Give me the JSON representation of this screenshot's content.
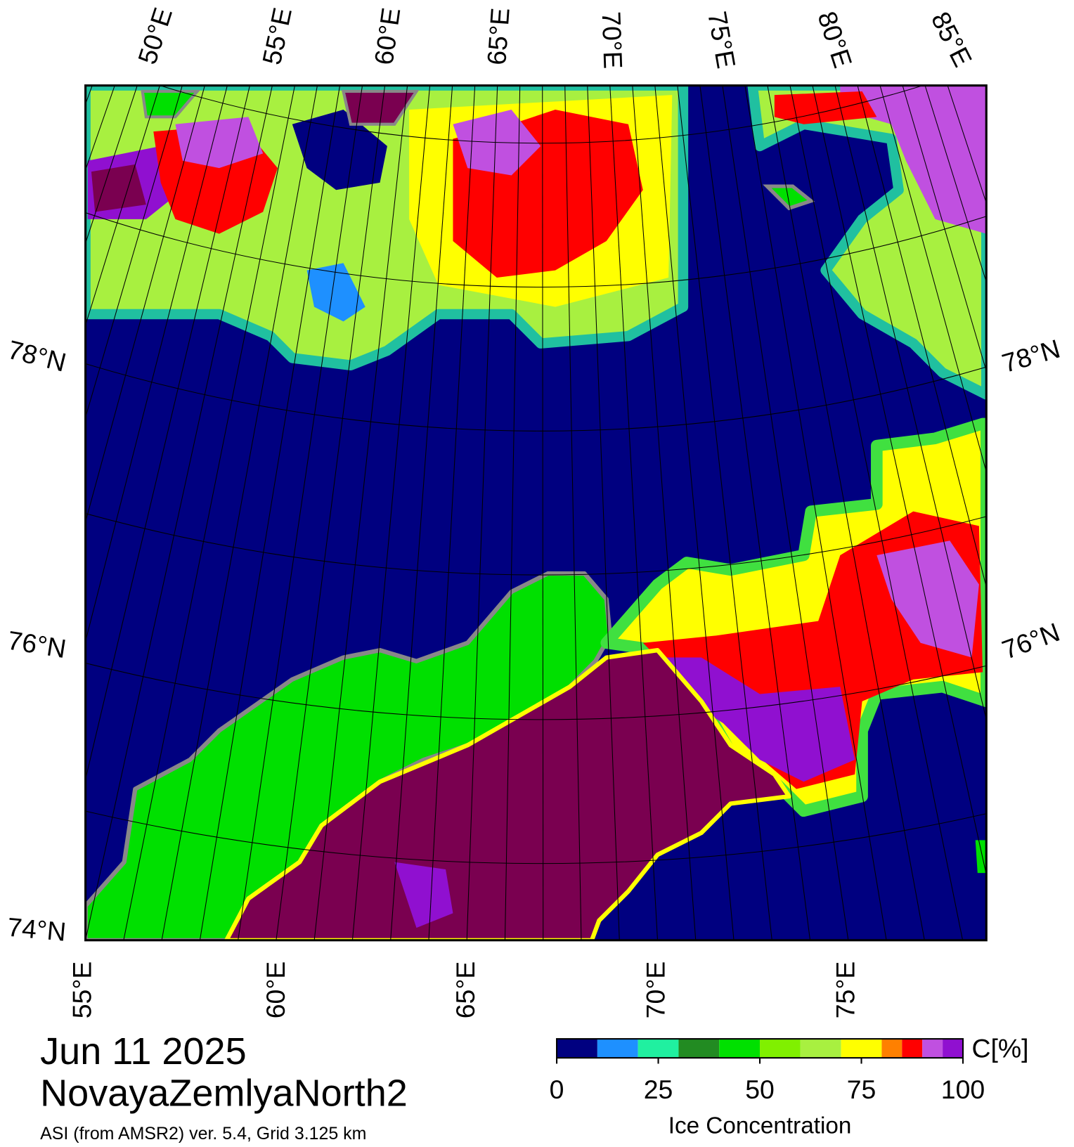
{
  "map": {
    "top_lon_labels": [
      "50°E",
      "55°E",
      "60°E",
      "65°E",
      "70°E",
      "75°E",
      "80°E",
      "85°E"
    ],
    "bottom_lon_labels": [
      "55°E",
      "60°E",
      "65°E",
      "70°E",
      "75°E"
    ],
    "left_lat_labels": [
      "78°N",
      "76°N",
      "74°N"
    ],
    "right_lat_labels": [
      "78°N",
      "76°N"
    ]
  },
  "date": "Jun 11 2025",
  "region": "NovayaZemlyaNorth2",
  "subtitle": "ASI (from AMSR2) ver. 5.4,  Grid 3.125 km",
  "colorbar": {
    "bounds": [
      0,
      10,
      20,
      30,
      40,
      50,
      60,
      70,
      80,
      85,
      90,
      95,
      100
    ],
    "colors": [
      "#000080",
      "#1e90ff",
      "#20f0a0",
      "#228b22",
      "#00e000",
      "#80f000",
      "#a8f040",
      "#ffff00",
      "#ff8000",
      "#ff0000",
      "#c050e0",
      "#9010d0"
    ],
    "ticks": [
      0,
      25,
      50,
      75,
      100
    ],
    "unit_label": "C[%]",
    "label": "Ice Concentration"
  }
}
